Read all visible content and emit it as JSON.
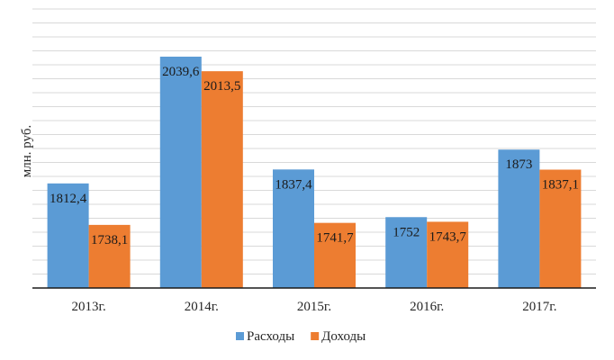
{
  "chart_data": {
    "type": "bar",
    "categories": [
      "2013г.",
      "2014г.",
      "2015г.",
      "2016г.",
      "2017г."
    ],
    "series": [
      {
        "name": "Расходы",
        "color": "#5b9bd5",
        "values": [
          1812.4,
          2039.6,
          1837.4,
          1752,
          1873
        ],
        "labels": [
          "1812,4",
          "2039,6",
          "1837,4",
          "1752",
          "1873"
        ]
      },
      {
        "name": "Доходы",
        "color": "#ed7d31",
        "values": [
          1738.1,
          2013.5,
          1741.7,
          1743.7,
          1837.1
        ],
        "labels": [
          "1738,1",
          "2013,5",
          "1741,7",
          "1743,7",
          "1837,1"
        ]
      }
    ],
    "ylabel": "млн. руб.",
    "ylim": [
      1625,
      2125
    ],
    "grid": true,
    "legend": "bottom"
  }
}
